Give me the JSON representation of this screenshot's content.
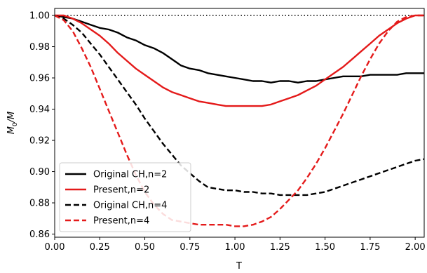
{
  "chart_data": {
    "type": "line",
    "xlabel": "T",
    "ylabel_main": "M",
    "ylabel_sub": "0",
    "ylabel_tail": "/M",
    "xlim": [
      0.0,
      2.05
    ],
    "ylim": [
      0.858,
      1.0045
    ],
    "xticks": [
      "0.00",
      "0.25",
      "0.50",
      "0.75",
      "1.00",
      "1.25",
      "1.50",
      "1.75",
      "2.00"
    ],
    "yticks": [
      "0.86",
      "0.88",
      "0.90",
      "0.92",
      "0.94",
      "0.96",
      "0.98",
      "1.00"
    ],
    "reference_line": {
      "y": 1.0,
      "style": "dotted",
      "color": "#000000"
    },
    "legend_position": "lower-left",
    "series": [
      {
        "name": "Original CH,n=2",
        "color": "#000000",
        "style": "solid",
        "x": [
          0,
          0.05,
          0.1,
          0.15,
          0.2,
          0.25,
          0.3,
          0.35,
          0.4,
          0.45,
          0.5,
          0.55,
          0.6,
          0.65,
          0.7,
          0.75,
          0.8,
          0.85,
          0.9,
          0.95,
          1.0,
          1.05,
          1.1,
          1.15,
          1.2,
          1.25,
          1.3,
          1.35,
          1.4,
          1.45,
          1.5,
          1.55,
          1.6,
          1.65,
          1.7,
          1.75,
          1.8,
          1.85,
          1.9,
          1.95,
          2.0,
          2.05
        ],
        "y": [
          1.0,
          0.999,
          0.998,
          0.996,
          0.994,
          0.992,
          0.991,
          0.989,
          0.986,
          0.984,
          0.981,
          0.979,
          0.976,
          0.972,
          0.968,
          0.966,
          0.965,
          0.963,
          0.962,
          0.961,
          0.96,
          0.959,
          0.958,
          0.958,
          0.957,
          0.958,
          0.958,
          0.957,
          0.958,
          0.958,
          0.959,
          0.96,
          0.961,
          0.961,
          0.961,
          0.962,
          0.962,
          0.962,
          0.962,
          0.963,
          0.963,
          0.963
        ]
      },
      {
        "name": "Present,n=2",
        "color": "#e41a1a",
        "style": "solid",
        "x": [
          0,
          0.05,
          0.1,
          0.15,
          0.2,
          0.25,
          0.3,
          0.35,
          0.4,
          0.45,
          0.5,
          0.55,
          0.6,
          0.65,
          0.7,
          0.75,
          0.8,
          0.85,
          0.9,
          0.95,
          1.0,
          1.05,
          1.1,
          1.15,
          1.2,
          1.25,
          1.3,
          1.35,
          1.4,
          1.45,
          1.5,
          1.55,
          1.6,
          1.65,
          1.7,
          1.75,
          1.8,
          1.85,
          1.9,
          1.95,
          2.0,
          2.05
        ],
        "y": [
          1.0,
          1.0,
          0.998,
          0.995,
          0.991,
          0.987,
          0.982,
          0.976,
          0.971,
          0.966,
          0.962,
          0.958,
          0.954,
          0.951,
          0.949,
          0.947,
          0.945,
          0.944,
          0.943,
          0.942,
          0.942,
          0.942,
          0.942,
          0.942,
          0.943,
          0.945,
          0.947,
          0.949,
          0.952,
          0.955,
          0.959,
          0.963,
          0.967,
          0.972,
          0.977,
          0.982,
          0.987,
          0.991,
          0.995,
          0.998,
          1.0,
          1.0
        ]
      },
      {
        "name": "Original CH,n=4",
        "color": "#000000",
        "style": "dashed",
        "x": [
          0,
          0.05,
          0.1,
          0.15,
          0.2,
          0.25,
          0.3,
          0.35,
          0.4,
          0.45,
          0.5,
          0.55,
          0.6,
          0.65,
          0.7,
          0.75,
          0.8,
          0.85,
          0.9,
          0.95,
          1.0,
          1.05,
          1.1,
          1.15,
          1.2,
          1.25,
          1.3,
          1.35,
          1.4,
          1.45,
          1.5,
          1.55,
          1.6,
          1.65,
          1.7,
          1.75,
          1.8,
          1.85,
          1.9,
          1.95,
          2.0,
          2.05
        ],
        "y": [
          1.0,
          0.998,
          0.994,
          0.989,
          0.982,
          0.975,
          0.967,
          0.959,
          0.951,
          0.943,
          0.934,
          0.926,
          0.918,
          0.911,
          0.904,
          0.899,
          0.894,
          0.89,
          0.889,
          0.888,
          0.888,
          0.887,
          0.887,
          0.886,
          0.886,
          0.885,
          0.885,
          0.885,
          0.885,
          0.886,
          0.887,
          0.889,
          0.891,
          0.893,
          0.895,
          0.897,
          0.899,
          0.901,
          0.903,
          0.905,
          0.907,
          0.908
        ]
      },
      {
        "name": "Present,n=4",
        "color": "#e41a1a",
        "style": "dashed",
        "x": [
          0,
          0.05,
          0.1,
          0.15,
          0.2,
          0.25,
          0.3,
          0.35,
          0.4,
          0.45,
          0.5,
          0.55,
          0.6,
          0.65,
          0.7,
          0.75,
          0.8,
          0.85,
          0.9,
          0.95,
          1.0,
          1.05,
          1.1,
          1.15,
          1.2,
          1.25,
          1.3,
          1.35,
          1.4,
          1.45,
          1.5,
          1.55,
          1.6,
          1.65,
          1.7,
          1.75,
          1.8,
          1.85,
          1.9,
          1.95,
          2.0,
          2.05
        ],
        "y": [
          1.0,
          0.997,
          0.99,
          0.979,
          0.967,
          0.953,
          0.939,
          0.925,
          0.911,
          0.898,
          0.887,
          0.879,
          0.873,
          0.869,
          0.868,
          0.867,
          0.866,
          0.866,
          0.866,
          0.866,
          0.865,
          0.865,
          0.866,
          0.868,
          0.871,
          0.876,
          0.882,
          0.888,
          0.896,
          0.905,
          0.915,
          0.926,
          0.937,
          0.949,
          0.961,
          0.972,
          0.982,
          0.99,
          0.996,
          0.999,
          1.0,
          1.0
        ]
      }
    ]
  }
}
